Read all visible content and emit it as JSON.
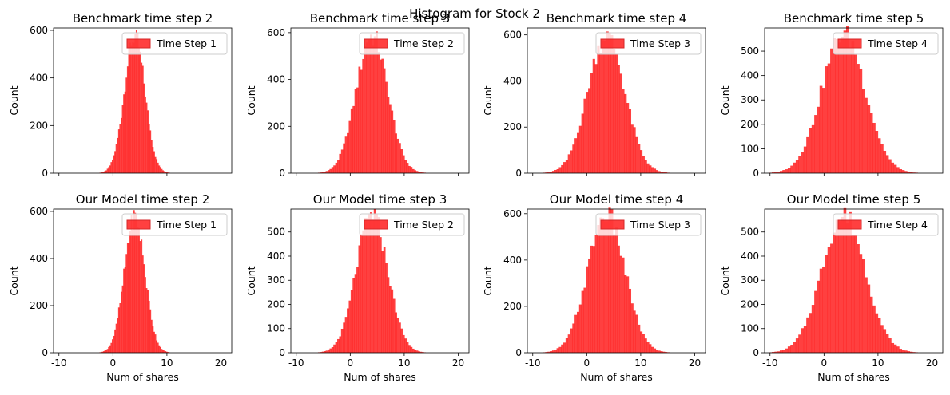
{
  "figure": {
    "suptitle": "Histogram for Stock 2",
    "bar_color": "#ff0000",
    "bar_alpha": 0.75,
    "edge_color": "#d62728"
  },
  "chart_data": [
    {
      "type": "bar",
      "title": "Benchmark time step 2",
      "legend": "Time Step 1",
      "xlabel": "",
      "ylabel": "Count",
      "xlim": [
        -11,
        22
      ],
      "ylim": [
        0,
        610
      ],
      "xticks": [
        -10,
        0,
        10,
        20
      ],
      "yticks": [
        0,
        200,
        400,
        600
      ],
      "show_xtick_labels": false,
      "mean": 4.0,
      "sd": 1.9,
      "peak": 575
    },
    {
      "type": "bar",
      "title": "Benchmark time step 3",
      "legend": "Time Step 2",
      "xlabel": "",
      "ylabel": "Count",
      "xlim": [
        -11,
        22
      ],
      "ylim": [
        0,
        620
      ],
      "xticks": [
        -10,
        0,
        10,
        20
      ],
      "yticks": [
        0,
        200,
        400,
        600
      ],
      "show_xtick_labels": false,
      "mean": 4.0,
      "sd": 2.9,
      "peak": 590
    },
    {
      "type": "bar",
      "title": "Benchmark time step 4",
      "legend": "Time Step 3",
      "xlabel": "",
      "ylabel": "Count",
      "xlim": [
        -11,
        22
      ],
      "ylim": [
        0,
        630
      ],
      "xticks": [
        -10,
        0,
        10,
        20
      ],
      "yticks": [
        0,
        200,
        400,
        600
      ],
      "show_xtick_labels": false,
      "mean": 3.6,
      "sd": 3.4,
      "peak": 600
    },
    {
      "type": "bar",
      "title": "Benchmark time step 5",
      "legend": "Time Step 4",
      "xlabel": "",
      "ylabel": "Count",
      "xlim": [
        -11,
        22
      ],
      "ylim": [
        0,
        595
      ],
      "xticks": [
        -10,
        0,
        10,
        20
      ],
      "yticks": [
        0,
        100,
        200,
        300,
        400,
        500
      ],
      "show_xtick_labels": false,
      "mean": 3.6,
      "sd": 4.0,
      "peak": 570
    },
    {
      "type": "bar",
      "title": "Our Model time step 2",
      "legend": "Time Step 1",
      "xlabel": "Num of shares",
      "ylabel": "Count",
      "xlim": [
        -11,
        22
      ],
      "ylim": [
        0,
        610
      ],
      "xticks": [
        -10,
        0,
        10,
        20
      ],
      "yticks": [
        0,
        200,
        400,
        600
      ],
      "show_xtick_labels": true,
      "mean": 4.0,
      "sd": 1.9,
      "peak": 575
    },
    {
      "type": "bar",
      "title": "Our Model time step 3",
      "legend": "Time Step 2",
      "xlabel": "Num of shares",
      "ylabel": "Count",
      "xlim": [
        -11,
        22
      ],
      "ylim": [
        0,
        595
      ],
      "xticks": [
        -10,
        0,
        10,
        20
      ],
      "yticks": [
        0,
        100,
        200,
        300,
        400,
        500
      ],
      "show_xtick_labels": true,
      "mean": 4.0,
      "sd": 2.9,
      "peak": 575
    },
    {
      "type": "bar",
      "title": "Our Model time step 4",
      "legend": "Time Step 3",
      "xlabel": "Num of shares",
      "ylabel": "Count",
      "xlim": [
        -11,
        22
      ],
      "ylim": [
        0,
        620
      ],
      "xticks": [
        -10,
        0,
        10,
        20
      ],
      "yticks": [
        0,
        200,
        400,
        600
      ],
      "show_xtick_labels": true,
      "mean": 3.6,
      "sd": 3.4,
      "peak": 600
    },
    {
      "type": "bar",
      "title": "Our Model time step 5",
      "legend": "Time Step 4",
      "xlabel": "Num of shares",
      "ylabel": "Count",
      "xlim": [
        -11,
        22
      ],
      "ylim": [
        0,
        595
      ],
      "xticks": [
        -10,
        0,
        10,
        20
      ],
      "yticks": [
        0,
        100,
        200,
        300,
        400,
        500
      ],
      "show_xtick_labels": true,
      "mean": 3.6,
      "sd": 4.0,
      "peak": 570
    }
  ]
}
